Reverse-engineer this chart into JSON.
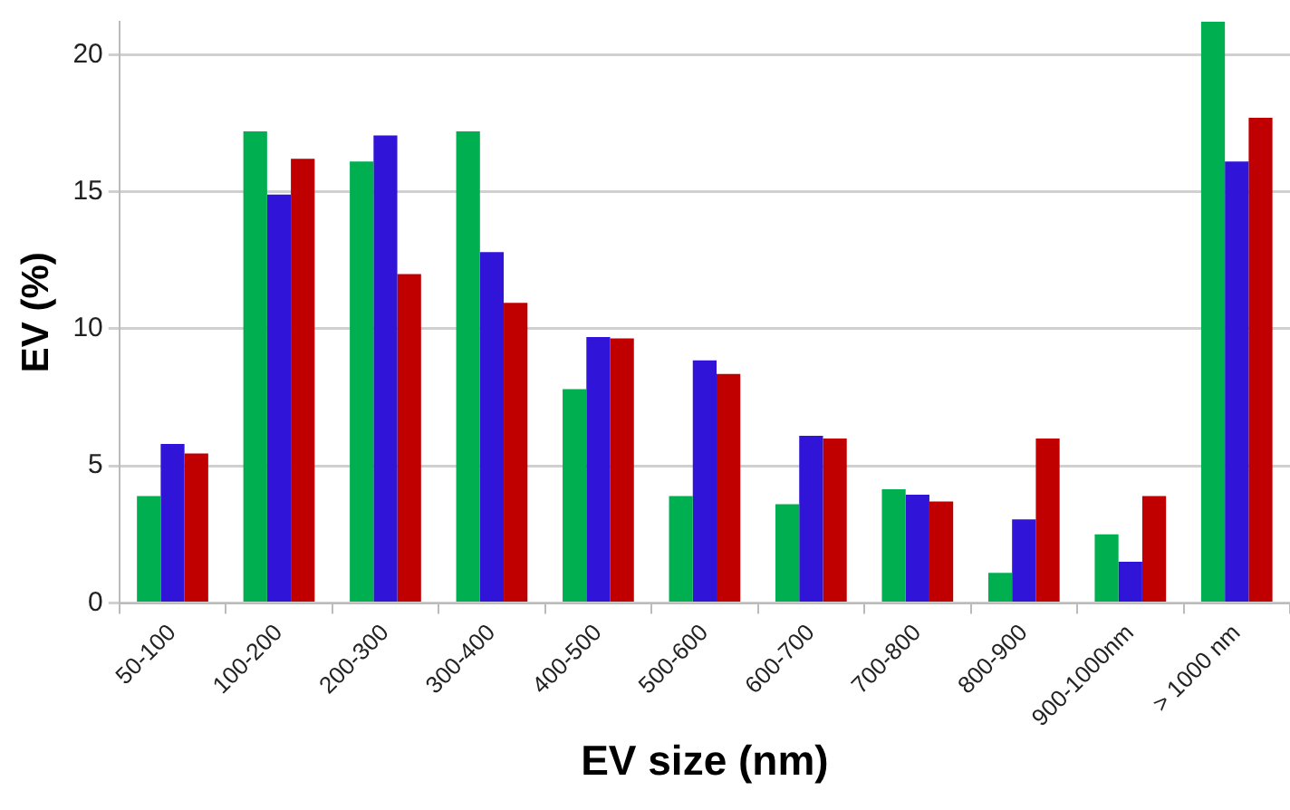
{
  "chart_data": {
    "type": "bar",
    "xlabel": "EV size (nm)",
    "ylabel": "EV (%)",
    "categories": [
      "50-100",
      "100-200",
      "200-300",
      "300-400",
      "400-500",
      "500-600",
      "600-700",
      "700-800",
      "800-900",
      "900-1000nm",
      "> 1000 nm"
    ],
    "series": [
      {
        "color": "#00b050",
        "values": [
          3.9,
          17.2,
          16.1,
          17.2,
          7.8,
          3.9,
          3.6,
          4.15,
          1.1,
          2.5,
          21.2
        ]
      },
      {
        "color": "#3014d8",
        "values": [
          5.8,
          14.9,
          17.05,
          12.8,
          9.7,
          8.85,
          6.1,
          3.95,
          3.05,
          1.5,
          16.1
        ]
      },
      {
        "color": "#c00000",
        "values": [
          5.45,
          16.2,
          12.0,
          10.95,
          9.65,
          8.35,
          6.0,
          3.7,
          6.0,
          3.9,
          17.7
        ]
      }
    ],
    "ylim": [
      0,
      21.2
    ],
    "yticks": [
      0,
      5,
      10,
      15,
      20
    ],
    "grid": "y",
    "legend": false
  }
}
